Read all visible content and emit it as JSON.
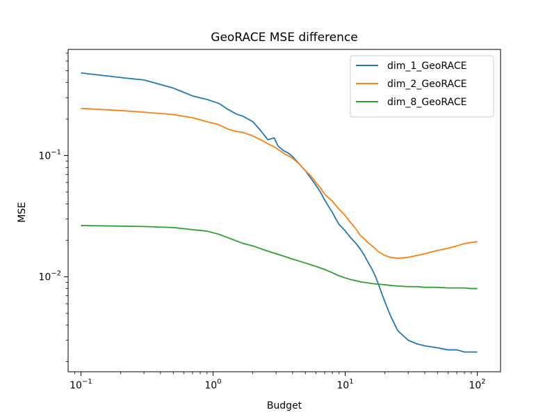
{
  "chart_data": {
    "type": "line",
    "title": "GeoRACE MSE difference",
    "xlabel": "Budget",
    "ylabel": "MSE",
    "xscale": "log",
    "yscale": "log",
    "xlim": [
      0.08,
      150
    ],
    "ylim": [
      0.00165,
      0.75
    ],
    "x_ticks": [
      {
        "value": 0.1,
        "base": "10",
        "exp": "−1"
      },
      {
        "value": 1,
        "base": "10",
        "exp": "0"
      },
      {
        "value": 10,
        "base": "10",
        "exp": "1"
      },
      {
        "value": 100,
        "base": "10",
        "exp": "2"
      }
    ],
    "y_ticks": [
      {
        "value": 0.1,
        "base": "10",
        "exp": "−1"
      },
      {
        "value": 0.01,
        "base": "10",
        "exp": "−2"
      }
    ],
    "grid": false,
    "legend_position": "top-right",
    "series": [
      {
        "name": "dim_1_GeoRACE",
        "color": "#1f77b4",
        "x": [
          0.1,
          0.2,
          0.3,
          0.5,
          0.7,
          0.9,
          1.1,
          1.3,
          1.5,
          1.7,
          2.0,
          2.3,
          2.6,
          2.9,
          3.1,
          3.4,
          3.7,
          4.0,
          4.5,
          5.0,
          5.5,
          6.0,
          6.5,
          7.0,
          7.5,
          8.0,
          8.5,
          9.0,
          10,
          11,
          12,
          13,
          14,
          15,
          16,
          17,
          18,
          19,
          20,
          22,
          25,
          30,
          35,
          40,
          50,
          60,
          70,
          80,
          90,
          100
        ],
        "y": [
          0.48,
          0.44,
          0.42,
          0.36,
          0.31,
          0.29,
          0.27,
          0.24,
          0.22,
          0.21,
          0.19,
          0.16,
          0.135,
          0.14,
          0.12,
          0.11,
          0.105,
          0.098,
          0.085,
          0.075,
          0.065,
          0.057,
          0.05,
          0.043,
          0.038,
          0.034,
          0.03,
          0.027,
          0.024,
          0.021,
          0.019,
          0.017,
          0.015,
          0.013,
          0.0115,
          0.01,
          0.0085,
          0.0072,
          0.0062,
          0.0048,
          0.0036,
          0.003,
          0.0028,
          0.0027,
          0.0026,
          0.0025,
          0.0025,
          0.0024,
          0.0024,
          0.0024
        ]
      },
      {
        "name": "dim_2_GeoRACE",
        "color": "#ff7f0e",
        "x": [
          0.1,
          0.2,
          0.3,
          0.5,
          0.7,
          0.9,
          1.1,
          1.3,
          1.5,
          1.7,
          2.0,
          2.3,
          2.6,
          2.9,
          3.2,
          3.5,
          4.0,
          4.5,
          5.0,
          5.5,
          6.0,
          6.5,
          7.0,
          8.0,
          9.0,
          10,
          11,
          12,
          13,
          14,
          15,
          16,
          18,
          20,
          22,
          25,
          30,
          35,
          40,
          50,
          60,
          70,
          80,
          90,
          100
        ],
        "y": [
          0.245,
          0.235,
          0.228,
          0.218,
          0.205,
          0.19,
          0.18,
          0.165,
          0.158,
          0.155,
          0.145,
          0.135,
          0.125,
          0.118,
          0.11,
          0.103,
          0.095,
          0.085,
          0.075,
          0.068,
          0.06,
          0.054,
          0.048,
          0.042,
          0.036,
          0.032,
          0.028,
          0.025,
          0.022,
          0.0205,
          0.019,
          0.018,
          0.016,
          0.015,
          0.0145,
          0.0142,
          0.0145,
          0.015,
          0.0155,
          0.0165,
          0.0172,
          0.018,
          0.0188,
          0.0192,
          0.0195
        ]
      },
      {
        "name": "dim_8_GeoRACE",
        "color": "#2ca02c",
        "x": [
          0.1,
          0.2,
          0.3,
          0.5,
          0.7,
          0.9,
          1.1,
          1.3,
          1.5,
          1.7,
          2.0,
          2.5,
          3.0,
          3.5,
          4.0,
          5.0,
          6.0,
          7.0,
          8.0,
          9.0,
          10,
          11,
          12,
          13,
          14,
          15,
          16,
          18,
          20,
          22,
          25,
          30,
          35,
          40,
          50,
          60,
          70,
          80,
          90,
          100
        ],
        "y": [
          0.0265,
          0.0262,
          0.026,
          0.0255,
          0.0245,
          0.0238,
          0.0225,
          0.021,
          0.0198,
          0.0188,
          0.018,
          0.0165,
          0.0155,
          0.0147,
          0.014,
          0.013,
          0.0122,
          0.0115,
          0.0108,
          0.0102,
          0.0098,
          0.0095,
          0.0093,
          0.0091,
          0.009,
          0.0089,
          0.0088,
          0.0087,
          0.0086,
          0.0085,
          0.0084,
          0.0083,
          0.0083,
          0.0082,
          0.0082,
          0.0081,
          0.0081,
          0.0081,
          0.008,
          0.008
        ]
      }
    ]
  }
}
